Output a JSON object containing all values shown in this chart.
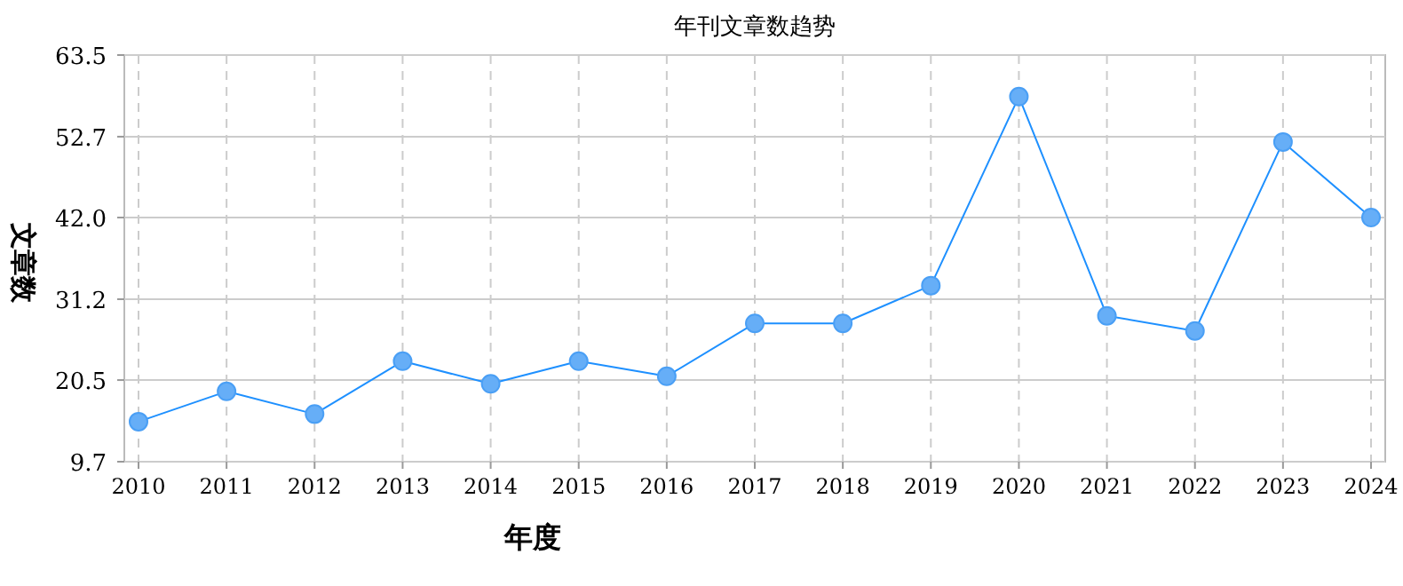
{
  "chart_data": {
    "type": "line",
    "title": "年刊文章数趋势",
    "xlabel": "年度",
    "ylabel": "文章数",
    "categories": [
      "2010",
      "2011",
      "2012",
      "2013",
      "2014",
      "2015",
      "2016",
      "2017",
      "2018",
      "2019",
      "2020",
      "2021",
      "2022",
      "2023",
      "2024"
    ],
    "series": [
      {
        "color": "#1e90ff",
        "values": [
          15,
          19,
          16,
          23,
          20,
          23,
          21,
          28,
          28,
          33,
          58,
          29,
          27,
          52,
          42
        ]
      }
    ],
    "ylim": [
      9.7,
      63.5
    ],
    "yticks": [
      9.7,
      20.5,
      31.2,
      {
        "value": 42,
        "label": "42.0"
      },
      52.7,
      63.5
    ],
    "grid": true,
    "marker": "circle",
    "line_style": "solid"
  }
}
